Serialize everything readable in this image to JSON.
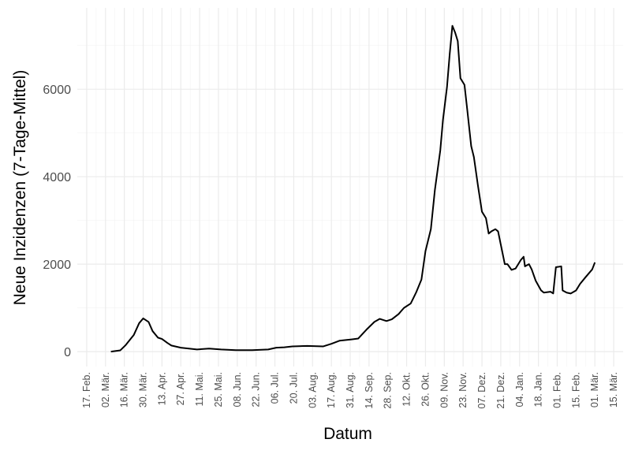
{
  "chart_data": {
    "type": "line",
    "xlabel": "Datum",
    "ylabel": "Neue Inzidenzen (7-Tage-Mittel)",
    "x": [
      18,
      25,
      29,
      35,
      39,
      42,
      46,
      49,
      53,
      56,
      60,
      63,
      70,
      76,
      82,
      91,
      100,
      111,
      123,
      135,
      141,
      147,
      153,
      164,
      176,
      182,
      188,
      197,
      202,
      208,
      214,
      218,
      223,
      227,
      232,
      236,
      241,
      245,
      249,
      252,
      256,
      259,
      263,
      265,
      268,
      270,
      272,
      274,
      276,
      278,
      281,
      283,
      286,
      288,
      291,
      294,
      297,
      299,
      301,
      304,
      306,
      309,
      311,
      313,
      316,
      319,
      323,
      325,
      326,
      329,
      331,
      334,
      338,
      340,
      345,
      347,
      349,
      353,
      354,
      357,
      360,
      364,
      367,
      371,
      376,
      378
    ],
    "series": [
      {
        "name": null,
        "color": "#000000",
        "values": [
          0,
          30,
          150,
          380,
          650,
          760,
          680,
          470,
          320,
          290,
          200,
          140,
          90,
          70,
          50,
          70,
          50,
          35,
          35,
          50,
          90,
          100,
          120,
          130,
          120,
          180,
          250,
          280,
          300,
          500,
          680,
          750,
          700,
          740,
          860,
          1000,
          1100,
          1350,
          1650,
          2300,
          2800,
          3700,
          4600,
          5300,
          6050,
          6800,
          7450,
          7300,
          7100,
          6250,
          6100,
          5550,
          4700,
          4450,
          3800,
          3200,
          3050,
          2700,
          2750,
          2800,
          2750,
          2300,
          2000,
          2000,
          1870,
          1900,
          2100,
          2170,
          1950,
          2000,
          1880,
          1620,
          1400,
          1350,
          1370,
          1330,
          1930,
          1950,
          1400,
          1350,
          1330,
          1400,
          1550,
          1700,
          1880,
          2040
        ]
      }
    ],
    "xlim": [
      -7,
      399
    ],
    "xticks": [
      {
        "value": 0,
        "label": "17. Feb."
      },
      {
        "value": 14,
        "label": "02. Mär."
      },
      {
        "value": 28,
        "label": "16. Mär."
      },
      {
        "value": 42,
        "label": "30. Mär."
      },
      {
        "value": 56,
        "label": "13. Apr."
      },
      {
        "value": 70,
        "label": "27. Apr."
      },
      {
        "value": 84,
        "label": "11. Mai."
      },
      {
        "value": 98,
        "label": "25. Mai."
      },
      {
        "value": 112,
        "label": "08. Jun."
      },
      {
        "value": 126,
        "label": "22. Jun."
      },
      {
        "value": 140,
        "label": "06. Jul."
      },
      {
        "value": 154,
        "label": "20. Jul."
      },
      {
        "value": 168,
        "label": "03. Aug."
      },
      {
        "value": 182,
        "label": "17. Aug."
      },
      {
        "value": 196,
        "label": "31. Aug."
      },
      {
        "value": 210,
        "label": "14. Sep."
      },
      {
        "value": 224,
        "label": "28. Sep."
      },
      {
        "value": 238,
        "label": "12. Okt."
      },
      {
        "value": 252,
        "label": "26. Okt."
      },
      {
        "value": 266,
        "label": "09. Nov."
      },
      {
        "value": 280,
        "label": "23. Nov."
      },
      {
        "value": 294,
        "label": "07. Dez."
      },
      {
        "value": 308,
        "label": "21. Dez."
      },
      {
        "value": 322,
        "label": "04. Jan."
      },
      {
        "value": 336,
        "label": "18. Jan."
      },
      {
        "value": 350,
        "label": "01. Feb."
      },
      {
        "value": 364,
        "label": "15. Feb."
      },
      {
        "value": 378,
        "label": "01. Mär."
      },
      {
        "value": 392,
        "label": "15. Mär."
      }
    ],
    "ylim": [
      -340,
      7860
    ],
    "yticks": [
      0,
      2000,
      4000,
      6000
    ],
    "grid": true
  }
}
